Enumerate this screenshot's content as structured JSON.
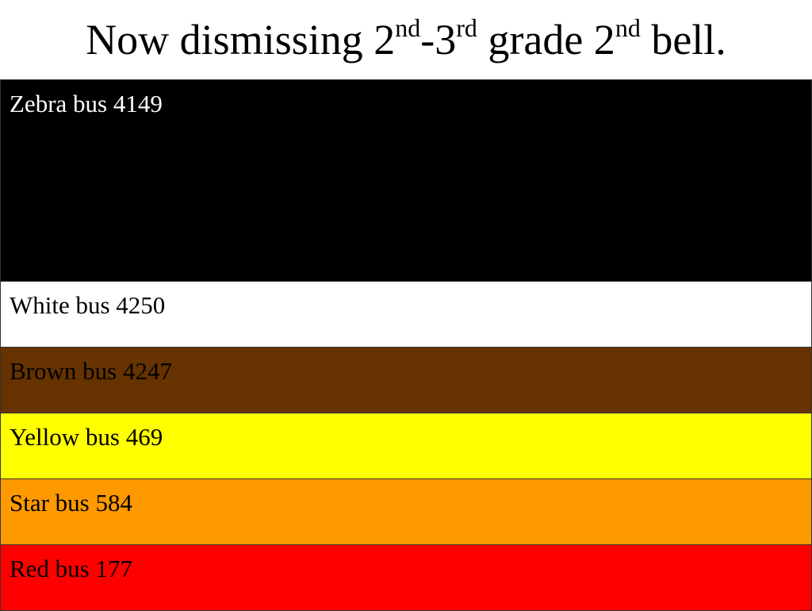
{
  "title": [
    "Now dismissing 2",
    "nd",
    "-3",
    "rd",
    " grade 2",
    "nd",
    " bell."
  ],
  "rows": [
    {
      "label": "Zebra bus 4149",
      "background": "#000000"
    },
    {
      "label": "White bus 4250",
      "background": "#ffffff"
    },
    {
      "label": "Brown bus 4247",
      "background": "#663300"
    },
    {
      "label": "Yellow bus 469",
      "background": "#ffff00"
    },
    {
      "label": "Star bus 584",
      "background": "#ff9900"
    },
    {
      "label": "Red bus 177",
      "background": "#ff0000"
    }
  ]
}
